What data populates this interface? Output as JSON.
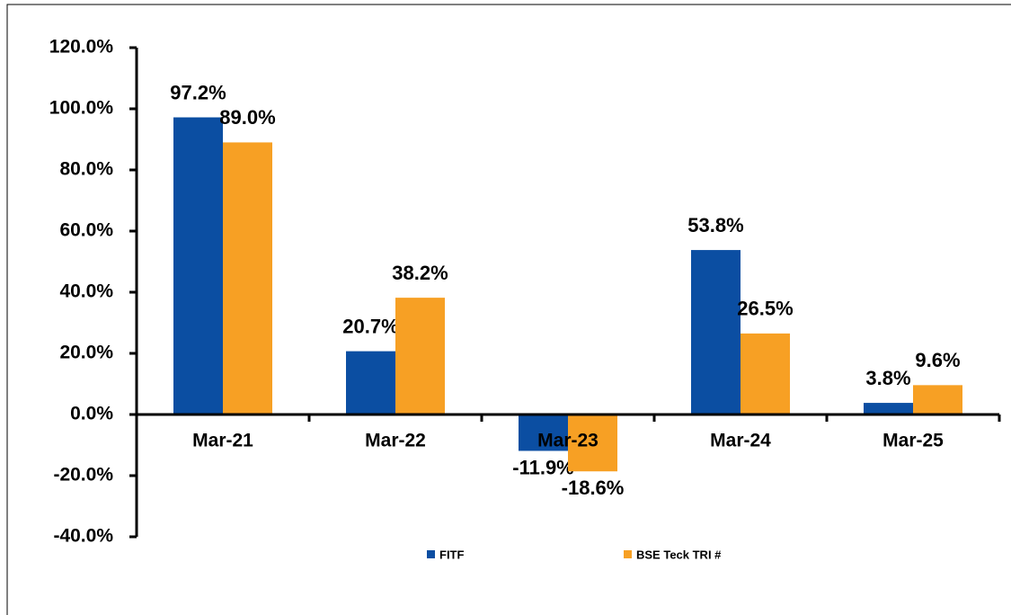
{
  "chart_data": {
    "type": "bar",
    "categories": [
      "Mar-21",
      "Mar-22",
      "Mar-23",
      "Mar-24",
      "Mar-25"
    ],
    "series": [
      {
        "name": "FITF",
        "color": "#0b4ea2",
        "values": [
          97.2,
          20.7,
          -11.9,
          53.8,
          3.8
        ],
        "value_labels": [
          "97.2%",
          "20.7%",
          "-11.9%",
          "53.8%",
          "3.8%"
        ]
      },
      {
        "name": "BSE Teck TRI #",
        "color": "#f7a024",
        "values": [
          89.0,
          38.2,
          -18.6,
          26.5,
          9.6
        ],
        "value_labels": [
          "89.0%",
          "38.2%",
          "-18.6%",
          "26.5%",
          "9.6%"
        ]
      }
    ],
    "ylim": [
      -40,
      120
    ],
    "yticks": [
      {
        "value": -40,
        "label": "-40.0%"
      },
      {
        "value": -20,
        "label": "-20.0%"
      },
      {
        "value": 0,
        "label": "0.0%"
      },
      {
        "value": 20,
        "label": "20.0%"
      },
      {
        "value": 40,
        "label": "40.0%"
      },
      {
        "value": 60,
        "label": "60.0%"
      },
      {
        "value": 80,
        "label": "80.0%"
      },
      {
        "value": 100,
        "label": "100.0%"
      },
      {
        "value": 120,
        "label": "120.0%"
      }
    ],
    "legend": "bottom"
  }
}
